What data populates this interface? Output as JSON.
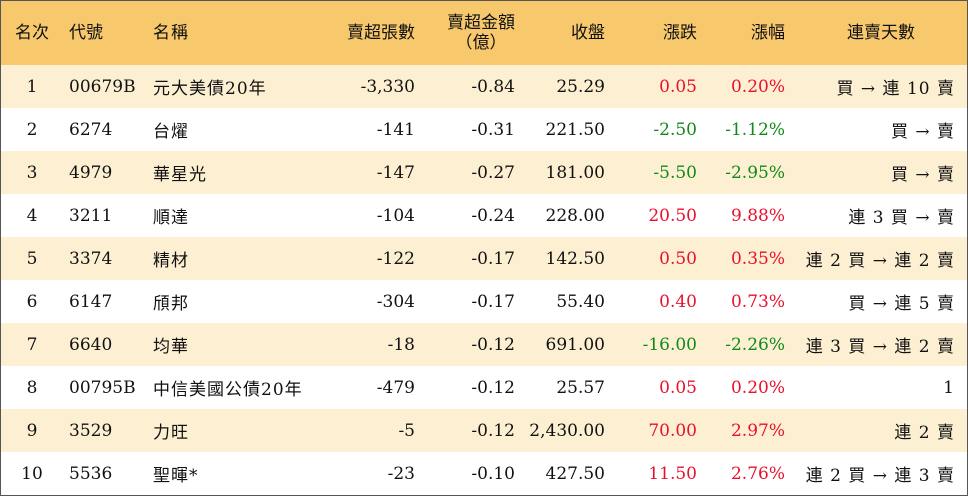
{
  "headers": {
    "rank": "名次",
    "code": "代號",
    "name": "名稱",
    "net_sell_lots": "賣超張數",
    "net_sell_amount_line1": "賣超金額",
    "net_sell_amount_line2": "（億）",
    "close": "收盤",
    "change": "漲跌",
    "change_pct": "漲幅",
    "streak": "連賣天數"
  },
  "colors": {
    "header_bg": "#f7c86c",
    "stripe_bg": "#fdf0d2",
    "up": "#e8112d",
    "down": "#108a1a"
  },
  "rows": [
    {
      "rank": "1",
      "code": "00679B",
      "name": "元大美債20年",
      "lots": "-3,330",
      "amount": "-0.84",
      "close": "25.29",
      "change": "0.05",
      "pct": "0.20%",
      "dir": "up",
      "streak": "買 → 連 10 賣"
    },
    {
      "rank": "2",
      "code": "6274",
      "name": "台燿",
      "lots": "-141",
      "amount": "-0.31",
      "close": "221.50",
      "change": "-2.50",
      "pct": "-1.12%",
      "dir": "down",
      "streak": "買 → 賣"
    },
    {
      "rank": "3",
      "code": "4979",
      "name": "華星光",
      "lots": "-147",
      "amount": "-0.27",
      "close": "181.00",
      "change": "-5.50",
      "pct": "-2.95%",
      "dir": "down",
      "streak": "買 → 賣"
    },
    {
      "rank": "4",
      "code": "3211",
      "name": "順達",
      "lots": "-104",
      "amount": "-0.24",
      "close": "228.00",
      "change": "20.50",
      "pct": "9.88%",
      "dir": "up",
      "streak": "連 3 買 → 賣"
    },
    {
      "rank": "5",
      "code": "3374",
      "name": "精材",
      "lots": "-122",
      "amount": "-0.17",
      "close": "142.50",
      "change": "0.50",
      "pct": "0.35%",
      "dir": "up",
      "streak": "連 2 買 → 連 2 賣"
    },
    {
      "rank": "6",
      "code": "6147",
      "name": "頎邦",
      "lots": "-304",
      "amount": "-0.17",
      "close": "55.40",
      "change": "0.40",
      "pct": "0.73%",
      "dir": "up",
      "streak": "買 → 連 5 賣"
    },
    {
      "rank": "7",
      "code": "6640",
      "name": "均華",
      "lots": "-18",
      "amount": "-0.12",
      "close": "691.00",
      "change": "-16.00",
      "pct": "-2.26%",
      "dir": "down",
      "streak": "連 3 買 → 連 2 賣"
    },
    {
      "rank": "8",
      "code": "00795B",
      "name": "中信美國公債20年",
      "lots": "-479",
      "amount": "-0.12",
      "close": "25.57",
      "change": "0.05",
      "pct": "0.20%",
      "dir": "up",
      "streak": "1"
    },
    {
      "rank": "9",
      "code": "3529",
      "name": "力旺",
      "lots": "-5",
      "amount": "-0.12",
      "close": "2,430.00",
      "change": "70.00",
      "pct": "2.97%",
      "dir": "up",
      "streak": "連 2 賣"
    },
    {
      "rank": "10",
      "code": "5536",
      "name": "聖暉*",
      "lots": "-23",
      "amount": "-0.10",
      "close": "427.50",
      "change": "11.50",
      "pct": "2.76%",
      "dir": "up",
      "streak": "連 2 買 → 連 3 賣"
    }
  ]
}
